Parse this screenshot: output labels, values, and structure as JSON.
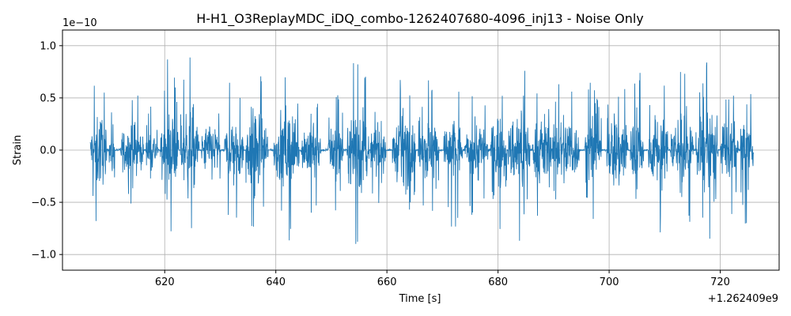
{
  "chart_data": {
    "type": "line",
    "title": "H-H1_O3ReplayMDC_iDQ_combo-1262407680-4096_inj13 - Noise Only",
    "xlabel": "Time [s]",
    "ylabel": "Strain",
    "x_offset_label": "+1.262409e9",
    "y_scale_label": "1e−10",
    "xlim": [
      601.6,
      730.6
    ],
    "ylim": [
      -1.15,
      1.15
    ],
    "x_ticks": [
      620,
      640,
      660,
      680,
      700,
      720
    ],
    "y_ticks": [
      -1.0,
      -0.5,
      0.0,
      0.5,
      1.0
    ],
    "x_tick_labels": [
      "620",
      "640",
      "660",
      "680",
      "700",
      "720"
    ],
    "y_tick_labels": [
      "−1.0",
      "−0.5",
      "0.0",
      "0.5",
      "1.0"
    ],
    "grid": true,
    "line_color": "#1f77b4",
    "signal": {
      "x_start": 606.6,
      "x_end": 726.0,
      "approx_peak": 1.05,
      "approx_trough": -1.04,
      "bursts": [
        [
          606.6,
          609.6,
          0.85
        ],
        [
          610.0,
          611.0,
          0.7
        ],
        [
          612.0,
          616.2,
          0.65
        ],
        [
          616.6,
          618.8,
          0.45
        ],
        [
          619.2,
          622.5,
          0.9
        ],
        [
          622.8,
          626.2,
          0.95
        ],
        [
          626.6,
          630.0,
          0.65
        ],
        [
          630.8,
          634.2,
          0.85
        ],
        [
          634.6,
          638.6,
          1.0
        ],
        [
          639.6,
          644.2,
          0.9
        ],
        [
          644.6,
          648.2,
          0.7
        ],
        [
          649.4,
          652.2,
          0.7
        ],
        [
          652.8,
          656.8,
          1.05
        ],
        [
          657.0,
          659.8,
          0.65
        ],
        [
          661.0,
          665.2,
          0.85
        ],
        [
          665.6,
          669.4,
          0.75
        ],
        [
          670.2,
          673.6,
          0.8
        ],
        [
          674.0,
          678.2,
          0.7
        ],
        [
          678.6,
          681.6,
          0.8
        ],
        [
          681.8,
          685.8,
          0.95
        ],
        [
          686.2,
          689.6,
          0.8
        ],
        [
          689.8,
          694.6,
          0.85
        ],
        [
          695.6,
          698.6,
          0.8
        ],
        [
          699.6,
          703.4,
          0.95
        ],
        [
          703.8,
          706.2,
          0.95
        ],
        [
          707.0,
          710.6,
          0.85
        ],
        [
          711.0,
          715.2,
          1.0
        ],
        [
          715.6,
          719.6,
          0.95
        ],
        [
          720.0,
          723.2,
          0.75
        ],
        [
          723.6,
          726.0,
          0.9
        ]
      ]
    }
  }
}
